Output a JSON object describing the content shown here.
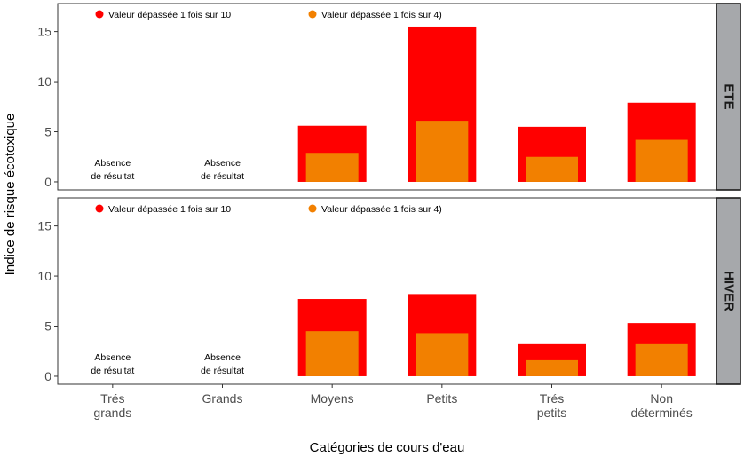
{
  "chart_data": {
    "type": "bar",
    "xlabel": "Catégories de cours d'eau",
    "ylabel": "Indice de risque écotoxique",
    "ylim": [
      -0.8,
      17.8
    ],
    "yticks": [
      0,
      5,
      10,
      15
    ],
    "categories": [
      [
        "Trés",
        "grands"
      ],
      [
        "Grands"
      ],
      [
        "Moyens"
      ],
      [
        "Petits"
      ],
      [
        "Trés",
        "petits"
      ],
      [
        "Non",
        "déterminés"
      ]
    ],
    "legend": [
      {
        "label": "Valeur dépassée 1 fois sur 10",
        "color": "#ff0000"
      },
      {
        "label": "Valeur dépassée 1 fois sur 4)",
        "color": "#f28000"
      }
    ],
    "absence_label": [
      "Absence",
      "de résultat"
    ],
    "panels": [
      {
        "strip": "ETE",
        "series": [
          {
            "name": "Valeur dépassée 1 fois sur 10",
            "color": "#ff0000",
            "values": [
              null,
              null,
              5.6,
              15.5,
              5.5,
              7.9
            ]
          },
          {
            "name": "Valeur dépassée 1 fois sur 4)",
            "color": "#f28000",
            "values": [
              null,
              null,
              2.9,
              6.1,
              2.5,
              4.2
            ]
          }
        ]
      },
      {
        "strip": "HIVER",
        "series": [
          {
            "name": "Valeur dépassée 1 fois sur 10",
            "color": "#ff0000",
            "values": [
              null,
              null,
              7.7,
              8.2,
              3.2,
              5.3
            ]
          },
          {
            "name": "Valeur dépassée 1 fois sur 4)",
            "color": "#f28000",
            "values": [
              null,
              null,
              4.5,
              4.3,
              1.6,
              3.2
            ]
          }
        ]
      }
    ]
  }
}
